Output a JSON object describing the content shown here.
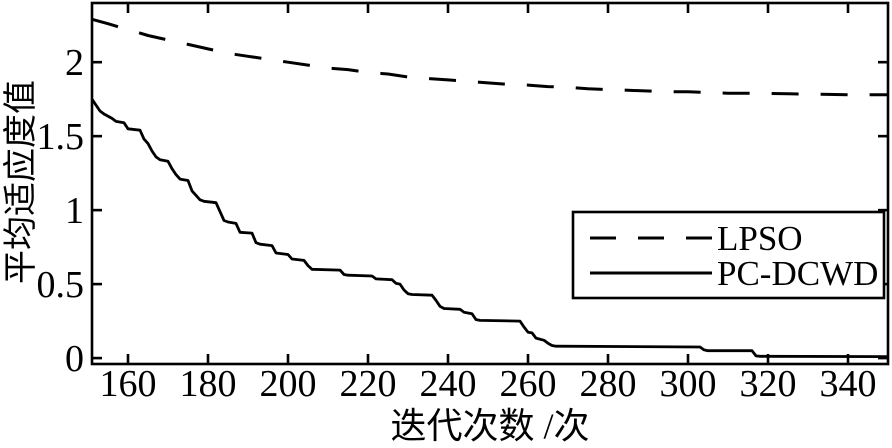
{
  "chart_data": {
    "type": "line",
    "title": "",
    "xlabel": "迭代次数 /次",
    "ylabel": "平均适应度值",
    "xlim": [
      151,
      350
    ],
    "ylim": [
      -0.04,
      2.4
    ],
    "x_ticks": [
      160,
      180,
      200,
      220,
      240,
      260,
      280,
      300,
      320,
      340
    ],
    "x_tick_labels": [
      "160",
      "180",
      "200",
      "220",
      "240",
      "260",
      "280",
      "300",
      "320",
      "340"
    ],
    "y_ticks": [
      0,
      0.5,
      1,
      1.5,
      2
    ],
    "y_tick_labels": [
      "0",
      "0.5",
      "1",
      "1.5",
      "2"
    ],
    "grid": false,
    "box": true,
    "tick_direction": "in",
    "legend_position": "lower right",
    "line_color": "#000000",
    "background_color": "#ffffff",
    "series": [
      {
        "name": "LPSO",
        "line_style": "dashed",
        "color": "#000000",
        "points": [
          [
            151,
            2.29
          ],
          [
            155,
            2.26
          ],
          [
            160,
            2.22
          ],
          [
            165,
            2.18
          ],
          [
            170,
            2.15
          ],
          [
            175,
            2.12
          ],
          [
            180,
            2.09
          ],
          [
            185,
            2.06
          ],
          [
            190,
            2.04
          ],
          [
            195,
            2.02
          ],
          [
            200,
            2.0
          ],
          [
            205,
            1.98
          ],
          [
            210,
            1.96
          ],
          [
            215,
            1.95
          ],
          [
            220,
            1.93
          ],
          [
            225,
            1.92
          ],
          [
            230,
            1.9
          ],
          [
            235,
            1.89
          ],
          [
            240,
            1.88
          ],
          [
            245,
            1.87
          ],
          [
            250,
            1.86
          ],
          [
            255,
            1.85
          ],
          [
            260,
            1.845
          ],
          [
            265,
            1.835
          ],
          [
            270,
            1.83
          ],
          [
            275,
            1.82
          ],
          [
            280,
            1.815
          ],
          [
            285,
            1.81
          ],
          [
            290,
            1.805
          ],
          [
            295,
            1.8
          ],
          [
            300,
            1.8
          ],
          [
            305,
            1.795
          ],
          [
            310,
            1.79
          ],
          [
            315,
            1.79
          ],
          [
            320,
            1.788
          ],
          [
            325,
            1.786
          ],
          [
            330,
            1.784
          ],
          [
            335,
            1.782
          ],
          [
            340,
            1.78
          ],
          [
            345,
            1.78
          ],
          [
            350,
            1.78
          ]
        ]
      },
      {
        "name": "PC-DCWD",
        "line_style": "solid",
        "color": "#000000",
        "points": [
          [
            151,
            1.75
          ],
          [
            152,
            1.71
          ],
          [
            153,
            1.67
          ],
          [
            154,
            1.65
          ],
          [
            156,
            1.62
          ],
          [
            157,
            1.6
          ],
          [
            159,
            1.59
          ],
          [
            160,
            1.55
          ],
          [
            163,
            1.54
          ],
          [
            164,
            1.48
          ],
          [
            165,
            1.45
          ],
          [
            166,
            1.4
          ],
          [
            167,
            1.36
          ],
          [
            168,
            1.34
          ],
          [
            170,
            1.33
          ],
          [
            171,
            1.28
          ],
          [
            172,
            1.24
          ],
          [
            173,
            1.21
          ],
          [
            175,
            1.2
          ],
          [
            176,
            1.13
          ],
          [
            178,
            1.07
          ],
          [
            179,
            1.06
          ],
          [
            182,
            1.05
          ],
          [
            183,
            0.99
          ],
          [
            184,
            0.93
          ],
          [
            185,
            0.92
          ],
          [
            187,
            0.91
          ],
          [
            188,
            0.85
          ],
          [
            191,
            0.845
          ],
          [
            192,
            0.78
          ],
          [
            193,
            0.77
          ],
          [
            196,
            0.76
          ],
          [
            197,
            0.71
          ],
          [
            200,
            0.7
          ],
          [
            201,
            0.67
          ],
          [
            204,
            0.66
          ],
          [
            205,
            0.625
          ],
          [
            206,
            0.6
          ],
          [
            213,
            0.595
          ],
          [
            214,
            0.565
          ],
          [
            215,
            0.56
          ],
          [
            221,
            0.555
          ],
          [
            222,
            0.535
          ],
          [
            226,
            0.53
          ],
          [
            227,
            0.505
          ],
          [
            228,
            0.5
          ],
          [
            229,
            0.46
          ],
          [
            230,
            0.435
          ],
          [
            231,
            0.43
          ],
          [
            236,
            0.425
          ],
          [
            237,
            0.39
          ],
          [
            238,
            0.35
          ],
          [
            239,
            0.335
          ],
          [
            243,
            0.33
          ],
          [
            244,
            0.31
          ],
          [
            246,
            0.3
          ],
          [
            247,
            0.26
          ],
          [
            248,
            0.255
          ],
          [
            258,
            0.25
          ],
          [
            259,
            0.21
          ],
          [
            260,
            0.175
          ],
          [
            261,
            0.17
          ],
          [
            262,
            0.135
          ],
          [
            264,
            0.12
          ],
          [
            265,
            0.1
          ],
          [
            266,
            0.085
          ],
          [
            267,
            0.08
          ],
          [
            303,
            0.075
          ],
          [
            304,
            0.055
          ],
          [
            305,
            0.05
          ],
          [
            316,
            0.05
          ],
          [
            317,
            0.015
          ],
          [
            318,
            0.012
          ],
          [
            350,
            0.01
          ]
        ]
      }
    ]
  },
  "legend": {
    "items": [
      {
        "label": "LPSO",
        "line_style": "dashed"
      },
      {
        "label": "PC-DCWD",
        "line_style": "solid"
      }
    ]
  }
}
